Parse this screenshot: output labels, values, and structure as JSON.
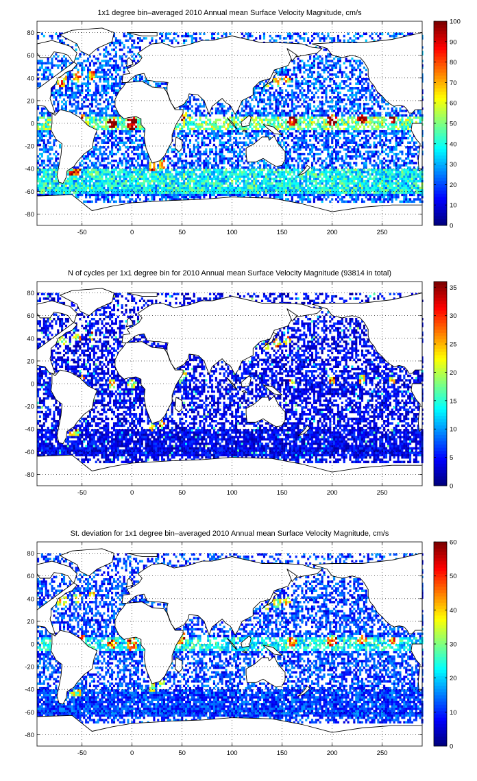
{
  "chart_data": [
    {
      "type": "heatmap",
      "title": "1x1 degree bin–averaged 2010 Annual mean Surface Velocity Magnitude, cm/s",
      "xlabel": "",
      "ylabel": "",
      "xlim": [
        -95,
        290
      ],
      "ylim": [
        -90,
        90
      ],
      "xticks": [
        "-50",
        "0",
        "50",
        "100",
        "150",
        "200",
        "250"
      ],
      "yticks": [
        "80",
        "60",
        "40",
        "20",
        "0",
        "-20",
        "-40",
        "-60",
        "-80"
      ],
      "grid": true,
      "colorbar": {
        "min": 0,
        "max": 100,
        "ticks": [
          "100",
          "90",
          "80",
          "70",
          "60",
          "50",
          "40",
          "30",
          "20",
          "10",
          "0"
        ],
        "colormap": "jet"
      }
    },
    {
      "type": "heatmap",
      "title": "N of cycles per 1x1 degree bin for 2010 Annual mean Surface Velocity Magnitude (93814 in total)",
      "xlabel": "",
      "ylabel": "",
      "xlim": [
        -95,
        290
      ],
      "ylim": [
        -90,
        90
      ],
      "xticks": [
        "-50",
        "0",
        "50",
        "100",
        "150",
        "200",
        "250"
      ],
      "yticks": [
        "80",
        "60",
        "40",
        "20",
        "0",
        "-20",
        "-40",
        "-60",
        "-80"
      ],
      "grid": true,
      "colorbar": {
        "min": 0,
        "max": 36,
        "ticks": [
          "35",
          "30",
          "25",
          "20",
          "15",
          "10",
          "5",
          "0"
        ],
        "colormap": "jet"
      }
    },
    {
      "type": "heatmap",
      "title": "St. deviation for 1x1 degree bin–averaged 2010 Annual mean Surface Velocity Magnitude, cm/s",
      "xlabel": "",
      "ylabel": "",
      "xlim": [
        -95,
        290
      ],
      "ylim": [
        -90,
        90
      ],
      "xticks": [
        "-50",
        "0",
        "50",
        "100",
        "150",
        "200",
        "250"
      ],
      "yticks": [
        "80",
        "60",
        "40",
        "20",
        "0",
        "-20",
        "-40",
        "-60",
        "-80"
      ],
      "grid": true,
      "colorbar": {
        "min": 0,
        "max": 60,
        "ticks": [
          "60",
          "50",
          "40",
          "30",
          "20",
          "10",
          "0"
        ],
        "colormap": "jet"
      }
    }
  ],
  "colors": {
    "land": "#ffffff",
    "coast": "#000000",
    "grid": "#000000",
    "background": "#ffffff"
  }
}
